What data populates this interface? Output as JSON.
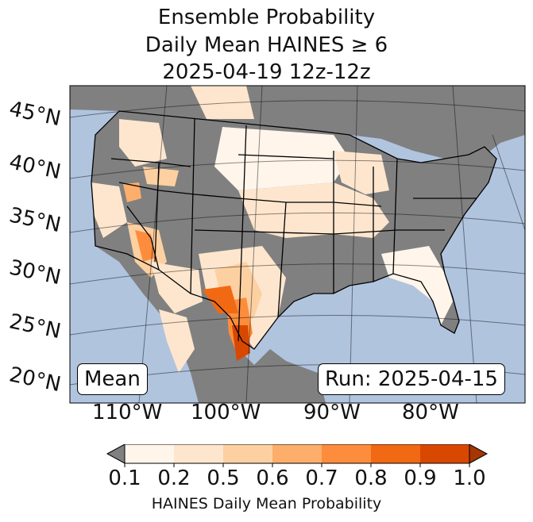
{
  "title": {
    "line1": "Ensemble Probability",
    "line2": "Daily Mean HAINES ≥ 6",
    "line3": "2025-04-19 12z-12z"
  },
  "map": {
    "lat_labels": [
      "45°N",
      "40°N",
      "35°N",
      "30°N",
      "25°N",
      "20°N"
    ],
    "lon_labels": [
      "110°W",
      "100°W",
      "90°W",
      "80°W"
    ],
    "colors": {
      "ocean": "#b0c4de",
      "land_no_data": "#808080",
      "border": "#000000"
    }
  },
  "badges": {
    "mean": "Mean",
    "run": "Run: 2025-04-15"
  },
  "colorbar": {
    "ticks": [
      "0.1",
      "0.2",
      "0.5",
      "0.6",
      "0.7",
      "0.8",
      "0.9",
      "1.0"
    ],
    "colors": [
      "#fff5eb",
      "#fee6ce",
      "#fdd0a2",
      "#fdae6b",
      "#fd8d3c",
      "#f16913",
      "#d94801",
      "#a63603"
    ],
    "under_color": "#808080",
    "label": "HAINES Daily Mean Probability"
  }
}
